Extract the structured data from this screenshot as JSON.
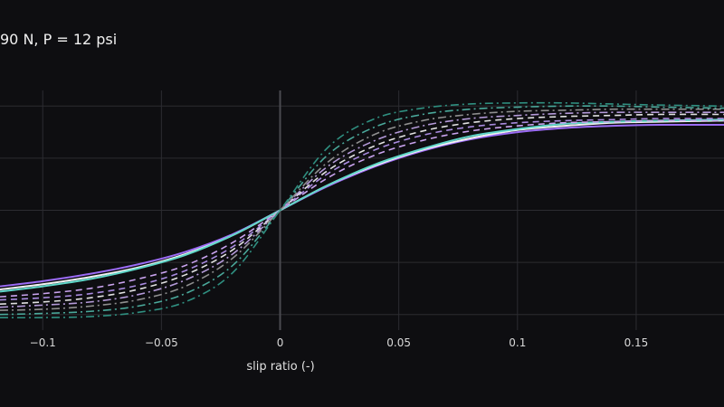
{
  "chart_data": {
    "type": "line",
    "title": "90 N, P = 12 psi",
    "xlabel": "slip ratio (-)",
    "x_ticks": [
      -0.1,
      -0.05,
      0,
      0.05,
      0.1,
      0.15
    ],
    "x_tick_labels": [
      "−0.1",
      "−0.05",
      "0",
      "0.05",
      "0.1",
      "0.15"
    ],
    "xlim": [
      -0.118,
      0.187
    ],
    "ylim": [
      -1.15,
      1.15
    ],
    "y_gridlines": [
      -1,
      -0.5,
      0,
      0.5,
      1
    ],
    "grid": true,
    "x": [
      -0.118,
      -0.1,
      -0.08,
      -0.06,
      -0.04,
      -0.02,
      0,
      0.02,
      0.04,
      0.06,
      0.08,
      0.1,
      0.12,
      0.14,
      0.16,
      0.187
    ],
    "series": [
      {
        "color": "#9b6bf5",
        "dash": "solid",
        "values": [
          -0.73,
          -0.68,
          -0.61,
          -0.52,
          -0.4,
          -0.23,
          0,
          0.23,
          0.42,
          0.57,
          0.68,
          0.75,
          0.79,
          0.81,
          0.82,
          0.82
        ]
      },
      {
        "color": "#f2f2f2",
        "dash": "solid",
        "values": [
          -0.76,
          -0.71,
          -0.64,
          -0.55,
          -0.42,
          -0.24,
          0,
          0.24,
          0.43,
          0.58,
          0.69,
          0.77,
          0.81,
          0.84,
          0.85,
          0.86
        ]
      },
      {
        "color": "#5fd6c8",
        "dash": "solid",
        "values": [
          -0.78,
          -0.73,
          -0.66,
          -0.56,
          -0.43,
          -0.24,
          0,
          0.24,
          0.44,
          0.59,
          0.71,
          0.78,
          0.83,
          0.85,
          0.86,
          0.87
        ]
      },
      {
        "color": "#c9a3ee",
        "dash": "dash",
        "values": [
          -0.83,
          -0.8,
          -0.75,
          -0.66,
          -0.53,
          -0.31,
          0,
          0.31,
          0.53,
          0.67,
          0.76,
          0.81,
          0.84,
          0.85,
          0.86,
          0.86
        ]
      },
      {
        "color": "#a98be0",
        "dash": "dash",
        "values": [
          -0.86,
          -0.84,
          -0.8,
          -0.72,
          -0.58,
          -0.35,
          0,
          0.35,
          0.58,
          0.72,
          0.8,
          0.84,
          0.86,
          0.87,
          0.88,
          0.88
        ]
      },
      {
        "color": "#e0e0e0",
        "dash": "dash",
        "values": [
          -0.9,
          -0.88,
          -0.84,
          -0.76,
          -0.62,
          -0.38,
          0,
          0.38,
          0.62,
          0.76,
          0.84,
          0.88,
          0.9,
          0.91,
          0.92,
          0.92
        ]
      },
      {
        "color": "#b49ad9",
        "dash": "dashdot",
        "values": [
          -0.93,
          -0.91,
          -0.88,
          -0.81,
          -0.67,
          -0.42,
          0,
          0.42,
          0.67,
          0.81,
          0.88,
          0.91,
          0.93,
          0.94,
          0.94,
          0.94
        ]
      },
      {
        "color": "#8f8f8f",
        "dash": "dashdot",
        "values": [
          -0.96,
          -0.95,
          -0.92,
          -0.86,
          -0.73,
          -0.46,
          0,
          0.46,
          0.73,
          0.86,
          0.92,
          0.95,
          0.96,
          0.97,
          0.97,
          0.97
        ]
      },
      {
        "color": "#4aa89a",
        "dash": "dashdot",
        "values": [
          -1.0,
          -0.99,
          -0.97,
          -0.92,
          -0.8,
          -0.53,
          0,
          0.53,
          0.8,
          0.92,
          0.97,
          0.99,
          1.0,
          1.0,
          0.99,
          0.98
        ]
      },
      {
        "color": "#2f8f80",
        "dash": "dashdot",
        "values": [
          -1.03,
          -1.03,
          -1.02,
          -0.98,
          -0.88,
          -0.6,
          0,
          0.6,
          0.88,
          0.98,
          1.02,
          1.03,
          1.03,
          1.02,
          1.01,
          1.0
        ]
      }
    ]
  }
}
